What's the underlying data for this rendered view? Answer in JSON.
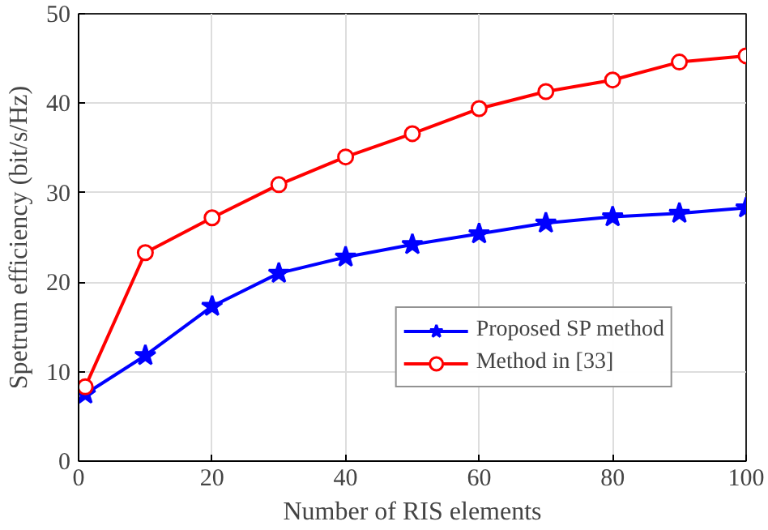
{
  "chart_data": {
    "type": "line",
    "xlabel": "Number of RIS elements",
    "ylabel": "Spetrum efficiency (bit/s/Hz)",
    "x": [
      1,
      10,
      20,
      30,
      40,
      50,
      60,
      70,
      80,
      90,
      100
    ],
    "series": [
      {
        "name": "Proposed SP method",
        "color": "#0000ff",
        "marker": "star",
        "values": [
          7.5,
          11.8,
          17.3,
          21,
          22.8,
          24.2,
          25.4,
          26.6,
          27.3,
          27.7,
          28.3
        ]
      },
      {
        "name": "Method in [33]",
        "color": "#ff0000",
        "marker": "circle",
        "values": [
          8.3,
          23.3,
          27.2,
          30.9,
          34,
          36.6,
          39.4,
          41.3,
          42.6,
          44.6,
          45.3
        ]
      }
    ],
    "xlim": [
      0,
      100
    ],
    "ylim": [
      0,
      50
    ],
    "xticks": [
      0,
      20,
      40,
      60,
      80,
      100
    ],
    "yticks": [
      0,
      10,
      20,
      30,
      40,
      50
    ],
    "grid": true,
    "legend": "bottom right",
    "line_style": "solid"
  }
}
